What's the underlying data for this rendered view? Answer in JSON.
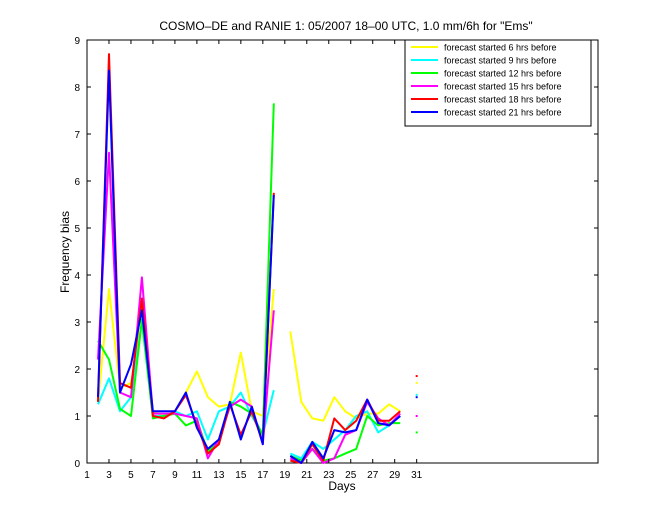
{
  "chart_data": {
    "type": "line",
    "title": "COSMO–DE and RANIE 1: 05/2007 18–00 UTC, 1.0 mm/6h for \"Ems\"",
    "xlabel": "Days",
    "ylabel": "Frequency bias",
    "xlim": [
      1,
      47.5
    ],
    "ylim": [
      0,
      9
    ],
    "x_ticks": [
      1,
      3,
      5,
      7,
      9,
      11,
      13,
      15,
      17,
      19,
      21,
      23,
      25,
      27,
      29,
      31
    ],
    "y_ticks": [
      0,
      1,
      2,
      3,
      4,
      5,
      6,
      7,
      8,
      9
    ],
    "grid": false,
    "legend_position": "top-right",
    "series": [
      {
        "name": "forecast started 6 hrs before",
        "color": "#ffff00",
        "points": [
          [
            2,
            1.3
          ],
          [
            3,
            3.7
          ],
          [
            4,
            1.6
          ],
          [
            5,
            1.7
          ],
          [
            6,
            3.0
          ],
          [
            7,
            1.1
          ],
          [
            8,
            1.0
          ],
          [
            9,
            1.1
          ],
          [
            10,
            1.5
          ],
          [
            11,
            1.95
          ],
          [
            12,
            1.4
          ],
          [
            13,
            1.2
          ],
          [
            14,
            1.25
          ],
          [
            15,
            2.35
          ],
          [
            16,
            1.1
          ],
          [
            17,
            1.0
          ],
          [
            18,
            3.7
          ]
        ],
        "points_2": [
          [
            19.5,
            2.8
          ],
          [
            20.5,
            1.3
          ],
          [
            21.5,
            0.95
          ],
          [
            22.5,
            0.9
          ],
          [
            23.5,
            1.4
          ],
          [
            24.5,
            1.1
          ],
          [
            25.5,
            0.95
          ],
          [
            26.5,
            1.05
          ],
          [
            27.5,
            1.05
          ],
          [
            28.5,
            1.25
          ],
          [
            29.5,
            1.1
          ]
        ],
        "isolated_point": [
          31,
          1.7
        ]
      },
      {
        "name": "forecast started 9 hrs before",
        "color": "#00ffff",
        "points": [
          [
            2,
            1.25
          ],
          [
            3,
            1.8
          ],
          [
            4,
            1.1
          ],
          [
            5,
            1.4
          ],
          [
            6,
            3.0
          ],
          [
            7,
            1.0
          ],
          [
            8,
            1.0
          ],
          [
            9,
            1.1
          ],
          [
            10,
            1.0
          ],
          [
            11,
            1.1
          ],
          [
            12,
            0.5
          ],
          [
            13,
            1.1
          ],
          [
            14,
            1.2
          ],
          [
            15,
            1.5
          ],
          [
            16,
            1.0
          ],
          [
            17,
            0.6
          ],
          [
            18,
            1.55
          ]
        ],
        "points_2": [
          [
            19.5,
            0.2
          ],
          [
            20.5,
            0.1
          ],
          [
            21.5,
            0.45
          ],
          [
            22.5,
            0.3
          ],
          [
            23.5,
            0.5
          ],
          [
            24.5,
            0.7
          ],
          [
            25.5,
            1.0
          ],
          [
            26.5,
            1.1
          ],
          [
            27.5,
            0.65
          ],
          [
            28.5,
            0.8
          ],
          [
            29.5,
            1.0
          ]
        ],
        "isolated_point": [
          31,
          1.45
        ]
      },
      {
        "name": "forecast started 12 hrs before",
        "color": "#00ff00",
        "points": [
          [
            2,
            2.6
          ],
          [
            3,
            2.2
          ],
          [
            4,
            1.15
          ],
          [
            5,
            1.0
          ],
          [
            6,
            3.05
          ],
          [
            7,
            0.95
          ],
          [
            8,
            1.0
          ],
          [
            9,
            1.05
          ],
          [
            10,
            0.8
          ],
          [
            11,
            0.9
          ],
          [
            12,
            0.25
          ],
          [
            13,
            0.45
          ],
          [
            14,
            1.3
          ],
          [
            15,
            1.2
          ],
          [
            16,
            1.05
          ],
          [
            17,
            0.6
          ],
          [
            18,
            7.65
          ]
        ],
        "points_2": [
          [
            19.5,
            0.15
          ],
          [
            20.5,
            0.05
          ],
          [
            21.5,
            0.3
          ],
          [
            22.5,
            0.05
          ],
          [
            23.5,
            0.1
          ],
          [
            24.5,
            0.2
          ],
          [
            25.5,
            0.3
          ],
          [
            26.5,
            1.0
          ],
          [
            27.5,
            0.8
          ],
          [
            28.5,
            0.85
          ],
          [
            29.5,
            0.85
          ]
        ],
        "isolated_point": [
          31,
          0.65
        ]
      },
      {
        "name": "forecast started 15 hrs before",
        "color": "#ff00ff",
        "points": [
          [
            2,
            2.2
          ],
          [
            3,
            6.6
          ],
          [
            4,
            1.5
          ],
          [
            5,
            1.4
          ],
          [
            6,
            3.95
          ],
          [
            7,
            1.05
          ],
          [
            8,
            1.05
          ],
          [
            9,
            1.05
          ],
          [
            10,
            1.0
          ],
          [
            11,
            0.95
          ],
          [
            12,
            0.1
          ],
          [
            13,
            0.5
          ],
          [
            14,
            1.2
          ],
          [
            15,
            1.35
          ],
          [
            16,
            1.2
          ],
          [
            17,
            0.4
          ],
          [
            18,
            3.25
          ]
        ],
        "points_2": [
          [
            19.5,
            0.1
          ],
          [
            20.5,
            0.0
          ],
          [
            21.5,
            0.3
          ],
          [
            22.5,
            0.0
          ],
          [
            23.5,
            0.1
          ],
          [
            24.5,
            0.6
          ],
          [
            25.5,
            0.7
          ],
          [
            26.5,
            1.3
          ],
          [
            27.5,
            0.95
          ],
          [
            28.5,
            0.8
          ],
          [
            29.5,
            1.05
          ]
        ],
        "isolated_point": [
          31,
          1.0
        ]
      },
      {
        "name": "forecast started 18 hrs before",
        "color": "#ff0000",
        "points": [
          [
            2,
            1.3
          ],
          [
            3,
            8.7
          ],
          [
            4,
            1.7
          ],
          [
            5,
            1.6
          ],
          [
            6,
            3.5
          ],
          [
            7,
            1.0
          ],
          [
            8,
            0.95
          ],
          [
            9,
            1.1
          ],
          [
            10,
            1.45
          ],
          [
            11,
            0.8
          ],
          [
            12,
            0.2
          ],
          [
            13,
            0.4
          ],
          [
            14,
            1.25
          ],
          [
            15,
            0.6
          ],
          [
            16,
            1.1
          ],
          [
            17,
            0.45
          ],
          [
            18,
            5.75
          ]
        ],
        "points_2": [
          [
            19.5,
            0.05
          ],
          [
            20.5,
            0.0
          ],
          [
            21.5,
            0.4
          ],
          [
            22.5,
            0.05
          ],
          [
            23.5,
            0.95
          ],
          [
            24.5,
            0.7
          ],
          [
            25.5,
            0.9
          ],
          [
            26.5,
            1.35
          ],
          [
            27.5,
            0.9
          ],
          [
            28.5,
            0.9
          ],
          [
            29.5,
            1.1
          ]
        ],
        "isolated_point": [
          31,
          1.85
        ]
      },
      {
        "name": "forecast started 21 hrs before",
        "color": "#0000ff",
        "points": [
          [
            2,
            1.4
          ],
          [
            3,
            8.35
          ],
          [
            4,
            1.5
          ],
          [
            5,
            2.1
          ],
          [
            6,
            3.25
          ],
          [
            7,
            1.1
          ],
          [
            8,
            1.1
          ],
          [
            9,
            1.1
          ],
          [
            10,
            1.5
          ],
          [
            11,
            0.75
          ],
          [
            12,
            0.3
          ],
          [
            13,
            0.5
          ],
          [
            14,
            1.3
          ],
          [
            15,
            0.5
          ],
          [
            16,
            1.2
          ],
          [
            17,
            0.4
          ],
          [
            18,
            5.7
          ]
        ],
        "points_2": [
          [
            19.5,
            0.15
          ],
          [
            20.5,
            0.0
          ],
          [
            21.5,
            0.45
          ],
          [
            22.5,
            0.1
          ],
          [
            23.5,
            0.7
          ],
          [
            24.5,
            0.65
          ],
          [
            25.5,
            0.7
          ],
          [
            26.5,
            1.35
          ],
          [
            27.5,
            0.85
          ],
          [
            28.5,
            0.8
          ],
          [
            29.5,
            1.0
          ]
        ],
        "isolated_point": [
          31,
          1.4
        ]
      }
    ]
  }
}
